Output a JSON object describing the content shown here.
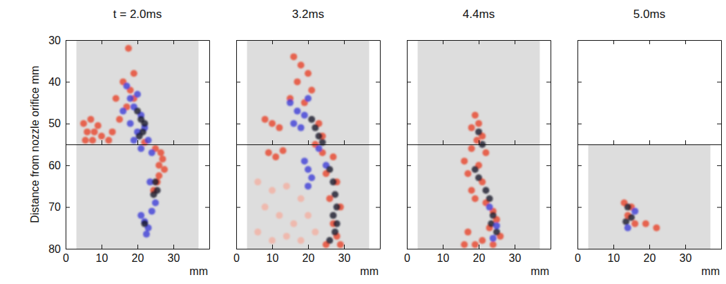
{
  "chart_data": [
    {
      "type": "scatter",
      "title": "t = 2.0ms",
      "x_label": "mm",
      "y_label": "Distance from nozzle orifice mm",
      "xlim": [
        0,
        40
      ],
      "ylim": [
        30,
        80
      ],
      "xticks": [
        0,
        10,
        20,
        30
      ],
      "yticks": [
        30,
        40,
        50,
        60,
        70,
        80
      ],
      "marker": "circle",
      "divider": 55,
      "fields": [
        {
          "x": [
            3,
            37
          ],
          "y": [
            30,
            55
          ]
        },
        {
          "x": [
            3,
            37
          ],
          "y": [
            55,
            80
          ]
        }
      ],
      "series": [
        {
          "color": "#e8462a",
          "x": [
            5,
            7,
            9,
            6,
            8,
            10,
            5.5,
            7.5,
            12,
            16,
            18,
            14,
            17,
            19,
            15,
            13,
            25,
            26.5,
            27,
            26,
            27.5,
            26,
            25.5,
            24.5,
            22,
            17.5,
            19
          ],
          "values": [
            50,
            49,
            50.5,
            52,
            52,
            53,
            54,
            54,
            54,
            40,
            42,
            44,
            46,
            38,
            49,
            52,
            56,
            57,
            58.5,
            60,
            61,
            62.5,
            64,
            66,
            54.5,
            32,
            44
          ]
        },
        {
          "color": "#3d3dd8",
          "x": [
            17,
            18,
            19,
            20,
            21,
            18,
            20,
            22,
            23,
            19,
            16,
            21,
            24,
            21,
            22,
            23,
            22.5,
            24,
            25,
            23.5
          ],
          "values": [
            41,
            44,
            46,
            43,
            48,
            50,
            52,
            51,
            54,
            54,
            47,
            56,
            57,
            72,
            73.5,
            75,
            76.5,
            71,
            69,
            64
          ]
        },
        {
          "color": "#1a1a2a",
          "x": [
            20,
            21,
            22,
            21.5,
            20.5,
            25,
            25.5,
            24.5,
            22
          ],
          "values": [
            47,
            49,
            50,
            52,
            53,
            64,
            66,
            67,
            74
          ]
        }
      ]
    },
    {
      "type": "scatter",
      "title": "3.2ms",
      "x_label": "mm",
      "tick_labels": "x",
      "xlim": [
        0,
        40
      ],
      "ylim": [
        30,
        80
      ],
      "xticks": [
        0,
        10,
        20,
        30
      ],
      "yticks": [
        30,
        40,
        50,
        60,
        70,
        80
      ],
      "marker": "circle",
      "divider": 55,
      "fields": [
        {
          "x": [
            3,
            37
          ],
          "y": [
            30,
            55
          ]
        },
        {
          "x": [
            3,
            37
          ],
          "y": [
            55,
            80
          ]
        }
      ],
      "series": [
        {
          "color": "#e8462a",
          "x": [
            16,
            18,
            20,
            17,
            21,
            15,
            19,
            8,
            10,
            12,
            23,
            24,
            22,
            9,
            11,
            13,
            24,
            27,
            25,
            28,
            26,
            29,
            27,
            28,
            25,
            29
          ],
          "values": [
            34,
            36,
            38,
            40,
            42,
            44,
            45,
            49,
            50,
            51,
            50,
            53,
            55,
            57,
            58,
            56.5,
            57,
            58,
            62,
            64,
            68,
            70,
            74,
            77,
            79,
            79
          ]
        },
        {
          "color": "#f2b0a2",
          "x": [
            6,
            10,
            14,
            18,
            8,
            12,
            16,
            20,
            6,
            10,
            14,
            18,
            22
          ],
          "values": [
            64,
            66,
            65,
            68,
            70,
            72,
            74,
            72,
            76,
            78,
            77,
            78,
            76
          ]
        },
        {
          "color": "#3d3dd8",
          "x": [
            15,
            17,
            19,
            16,
            18,
            20,
            19,
            20,
            21,
            20,
            23,
            25
          ],
          "values": [
            45,
            47,
            48,
            50,
            51,
            44,
            59,
            61,
            63,
            65,
            56,
            60
          ]
        },
        {
          "color": "#1a1a2a",
          "x": [
            21,
            22,
            23,
            24,
            26,
            27,
            27.5,
            28,
            27,
            28,
            27.5,
            26
          ],
          "values": [
            49,
            51,
            53,
            54.5,
            61,
            64,
            67,
            70,
            72,
            74,
            76,
            78
          ]
        }
      ]
    },
    {
      "type": "scatter",
      "title": "4.4ms",
      "x_label": "mm",
      "tick_labels": "x",
      "xlim": [
        0,
        40
      ],
      "ylim": [
        30,
        80
      ],
      "xticks": [
        0,
        10,
        20,
        30
      ],
      "yticks": [
        30,
        40,
        50,
        60,
        70,
        80
      ],
      "marker": "circle",
      "divider": 55,
      "fields": [
        {
          "x": [
            3,
            37
          ],
          "y": [
            30,
            55
          ]
        },
        {
          "x": [
            3,
            37
          ],
          "y": [
            55,
            80
          ]
        }
      ],
      "series": [
        {
          "color": "#e8462a",
          "x": [
            19,
            20,
            18,
            21,
            19.5,
            18,
            22,
            16,
            20,
            17,
            21,
            18,
            19,
            22,
            24,
            25,
            23,
            26,
            17,
            19,
            16,
            21,
            24
          ],
          "values": [
            48,
            50,
            51,
            53,
            54,
            56,
            57,
            59,
            60,
            62,
            64,
            66,
            68,
            69,
            71,
            73,
            75,
            77,
            76,
            79,
            79,
            78,
            79
          ]
        },
        {
          "color": "#1a1a2a",
          "x": [
            20,
            21,
            19,
            20,
            22,
            23,
            24,
            23.5,
            25
          ],
          "values": [
            52,
            55,
            61,
            63,
            66,
            68,
            72,
            74,
            76
          ]
        },
        {
          "color": "#3d3dd8",
          "x": [
            23,
            25,
            24
          ],
          "values": [
            70,
            74.5,
            77.5
          ]
        }
      ]
    },
    {
      "type": "scatter",
      "title": "5.0ms",
      "x_label": "mm",
      "tick_labels": "x",
      "xlim": [
        0,
        40
      ],
      "ylim": [
        30,
        80
      ],
      "xticks": [
        0,
        10,
        20,
        30
      ],
      "yticks": [
        30,
        40,
        50,
        60,
        70,
        80
      ],
      "marker": "circle",
      "divider": 55,
      "fields": [
        {
          "x": [
            3,
            37
          ],
          "y": [
            55,
            80
          ]
        }
      ],
      "series": [
        {
          "color": "#e8462a",
          "x": [
            13,
            15,
            14,
            16,
            19,
            22
          ],
          "values": [
            69,
            70,
            72,
            74,
            74,
            75
          ]
        },
        {
          "color": "#1a1a2a",
          "x": [
            14,
            15,
            13.5
          ],
          "values": [
            70,
            72.5,
            73.5
          ]
        },
        {
          "color": "#3d3dd8",
          "x": [
            16,
            14
          ],
          "values": [
            71,
            75
          ]
        }
      ]
    }
  ]
}
